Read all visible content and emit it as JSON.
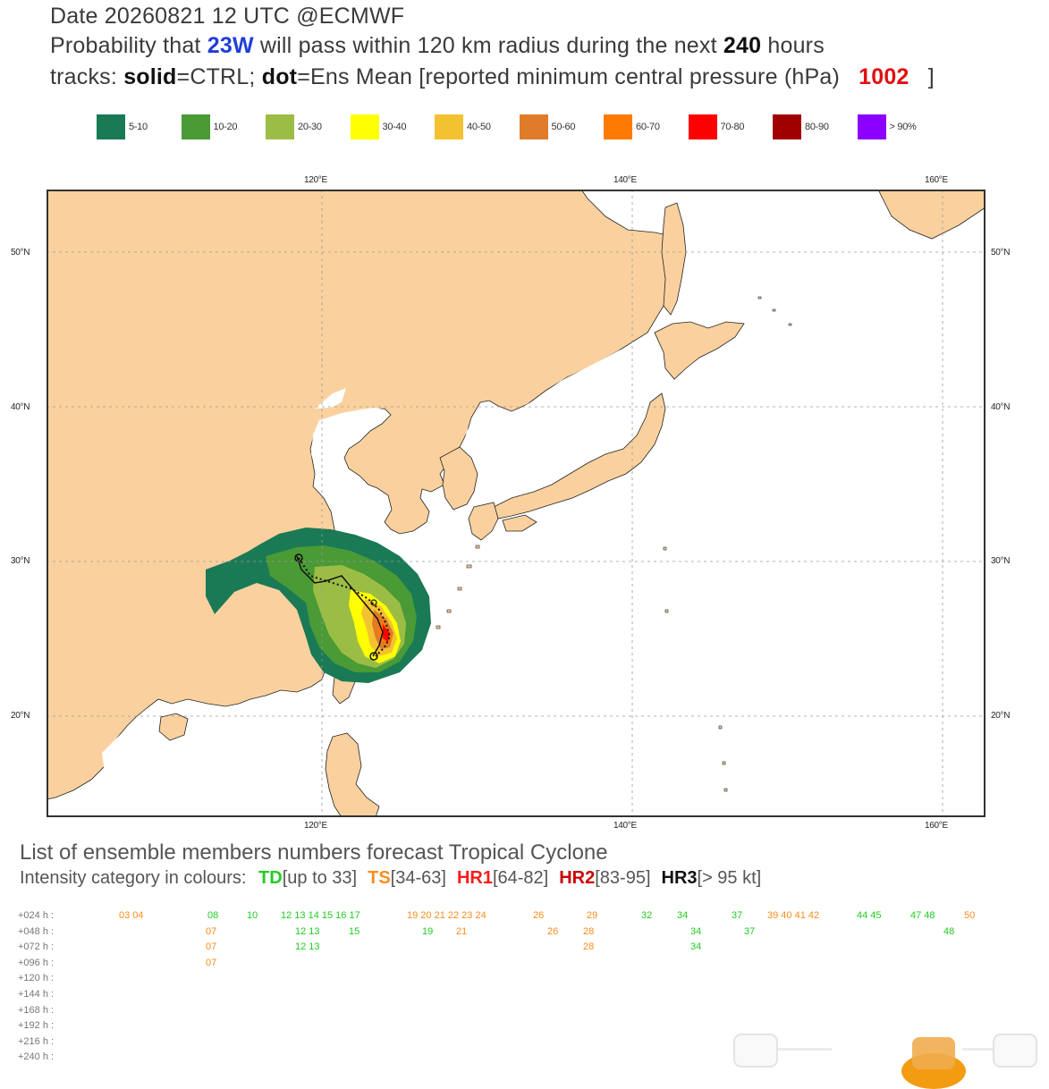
{
  "header": {
    "line1": "Date 20260821 12 UTC   @ECMWF",
    "line2_pre": "Probability that",
    "storm_id": "23W",
    "line2_post": "will pass within 120 km radius during the next",
    "hours": "240",
    "hours_word": "hours",
    "tracks_pre": "tracks:",
    "solid": "solid",
    "solid_def": "=CTRL;",
    "dot": "dot",
    "dot_def": "=Ens Mean [reported minimum central pressure (hPa)",
    "pressure": "1002",
    "close_bracket": "]"
  },
  "legend": [
    {
      "label": "5-10",
      "color": "#1a7a55"
    },
    {
      "label": "10-20",
      "color": "#4a9a35"
    },
    {
      "label": "20-30",
      "color": "#9cbd45"
    },
    {
      "label": "30-40",
      "color": "#ffff00"
    },
    {
      "label": "40-50",
      "color": "#f2c230"
    },
    {
      "label": "50-60",
      "color": "#e07b2a"
    },
    {
      "label": "60-70",
      "color": "#ff7a00"
    },
    {
      "label": "70-80",
      "color": "#ff0000"
    },
    {
      "label": "80-90",
      "color": "#a00000"
    },
    {
      "label": "> 90%",
      "color": "#8b00ff"
    }
  ],
  "map": {
    "lon_ticks": [
      "120°E",
      "140°E",
      "160°E"
    ],
    "lat_ticks": [
      "50°N",
      "40°N",
      "30°N",
      "20°N"
    ],
    "land_color": "#fad19e",
    "sea_color": "#ffffff"
  },
  "members": {
    "title": "List of ensemble members numbers forecast Tropical Cyclone",
    "subtitle_pre": "Intensity category in colours:",
    "categories": [
      {
        "name": "TD",
        "range": "[up to 33]",
        "color": "#22cc22"
      },
      {
        "name": "TS",
        "range": "[34-63]",
        "color": "#ff8c1a"
      },
      {
        "name": "HR1",
        "range": "[64-82]",
        "color": "#ff1a1a"
      },
      {
        "name": "HR2",
        "range": "[83-95]",
        "color": "#cc0000"
      },
      {
        "name": "HR3",
        "range": "[> 95 kt]",
        "color": "#111111"
      }
    ],
    "rows": [
      {
        "label": "+024 h :",
        "items": [
          {
            "n": "03 04",
            "c": "ts"
          },
          {
            "n": "08",
            "c": "td"
          },
          {
            "n": "10",
            "c": "td"
          },
          {
            "n": "12 13 14 15 16 17",
            "c": "mix1"
          },
          {
            "n": "19 20 21 22 23 24",
            "c": "mix2"
          },
          {
            "n": "26",
            "c": "ts"
          },
          {
            "n": "29",
            "c": "ts"
          },
          {
            "n": "32",
            "c": "td"
          },
          {
            "n": "34",
            "c": "td"
          },
          {
            "n": "37",
            "c": "td"
          },
          {
            "n": "39 40 41 42",
            "c": "mix3"
          },
          {
            "n": "44 45",
            "c": "td"
          },
          {
            "n": "47 48",
            "c": "td"
          },
          {
            "n": "50",
            "c": "ts"
          }
        ]
      },
      {
        "label": "+048 h :",
        "items": [
          {
            "n": "07",
            "c": "ts"
          },
          {
            "n": "12 13",
            "c": "td"
          },
          {
            "n": "15",
            "c": "td"
          },
          {
            "n": "19",
            "c": "td"
          },
          {
            "n": "21",
            "c": "ts"
          },
          {
            "n": "26",
            "c": "ts"
          },
          {
            "n": "28",
            "c": "ts"
          },
          {
            "n": "34",
            "c": "td"
          },
          {
            "n": "37",
            "c": "td"
          },
          {
            "n": "48",
            "c": "td"
          }
        ]
      },
      {
        "label": "+072 h :",
        "items": [
          {
            "n": "07",
            "c": "ts"
          },
          {
            "n": "12 13",
            "c": "td"
          },
          {
            "n": "28",
            "c": "ts"
          },
          {
            "n": "34",
            "c": "td"
          }
        ]
      },
      {
        "label": "+096 h :",
        "items": [
          {
            "n": "07",
            "c": "ts"
          }
        ]
      },
      {
        "label": "+120 h :",
        "items": []
      },
      {
        "label": "+144 h :",
        "items": []
      },
      {
        "label": "+168 h :",
        "items": []
      },
      {
        "label": "+192 h :",
        "items": []
      },
      {
        "label": "+216 h :",
        "items": []
      },
      {
        "label": "+240 h :",
        "items": []
      }
    ]
  }
}
